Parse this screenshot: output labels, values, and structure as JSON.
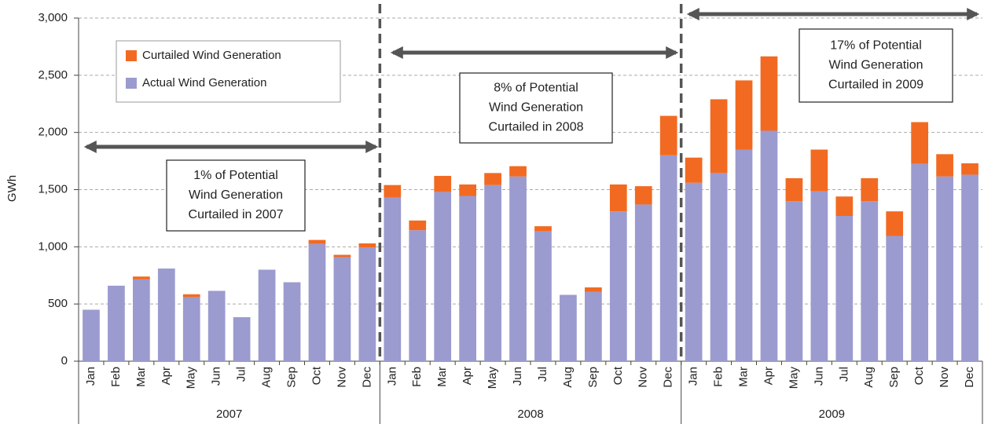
{
  "chart_data": {
    "type": "stacked_bar",
    "y_label": "GWh",
    "categories": [
      "Jan",
      "Feb",
      "Mar",
      "Apr",
      "May",
      "Jun",
      "Jul",
      "Aug",
      "Sep",
      "Oct",
      "Nov",
      "Dec",
      "Jan",
      "Feb",
      "Mar",
      "Apr",
      "May",
      "Jun",
      "Jul",
      "Aug",
      "Sep",
      "Oct",
      "Nov",
      "Dec",
      "Jan",
      "Feb",
      "Mar",
      "Apr",
      "May",
      "Jun",
      "Jul",
      "Aug",
      "Sep",
      "Oct",
      "Nov",
      "Dec"
    ],
    "groups": [
      "2007",
      "2008",
      "2009"
    ],
    "series": [
      {
        "name": "Actual Wind Generation",
        "color": "#9b9bd0",
        "values": [
          450,
          660,
          715,
          810,
          560,
          615,
          385,
          800,
          690,
          1025,
          910,
          995,
          1430,
          1145,
          1480,
          1445,
          1540,
          1615,
          1135,
          580,
          605,
          1310,
          1370,
          1800,
          1560,
          1645,
          1850,
          2015,
          1400,
          1485,
          1270,
          1400,
          1095,
          1725,
          1615,
          1630
        ]
      },
      {
        "name": "Curtailed Wind Generation",
        "color": "#f26a21",
        "values": [
          0,
          0,
          25,
          0,
          25,
          0,
          0,
          0,
          0,
          35,
          20,
          35,
          110,
          85,
          140,
          100,
          105,
          90,
          45,
          0,
          40,
          235,
          160,
          345,
          220,
          645,
          605,
          650,
          200,
          365,
          170,
          200,
          215,
          365,
          195,
          100
        ]
      }
    ],
    "ylim": [
      0,
      3000
    ],
    "yticks": [
      0,
      500,
      {
        "value": 1000,
        "label": "1,000"
      },
      {
        "value": 1500,
        "label": "1,500"
      },
      {
        "value": 2000,
        "label": "2,000"
      },
      {
        "value": 2500,
        "label": "2,500"
      },
      {
        "value": 3000,
        "label": "3,000"
      }
    ],
    "grid": true,
    "annotations": [
      {
        "lines": [
          "1% of Potential",
          "Wind Generation",
          "Curtailed in 2007"
        ]
      },
      {
        "lines": [
          "8% of Potential",
          "Wind Generation",
          "Curtailed in 2008"
        ]
      },
      {
        "lines": [
          "17% of Potential",
          "Wind Generation",
          "Curtailed in 2009"
        ]
      }
    ]
  }
}
